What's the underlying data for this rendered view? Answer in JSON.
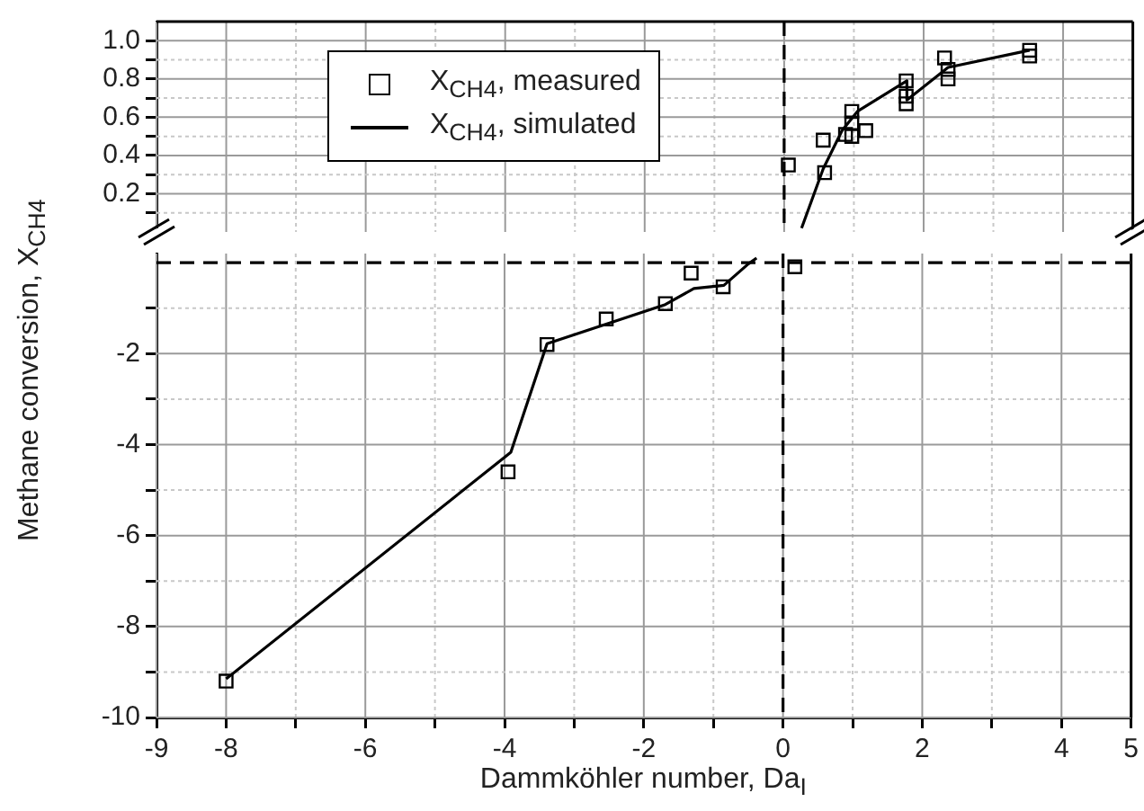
{
  "chart_data": [
    {
      "type": "scatter",
      "tick_labels": "y",
      "xlim": [
        -9,
        5
      ],
      "xticks": [
        -9,
        -8,
        {
          "value": -7,
          "label": null
        },
        -6,
        {
          "value": -5,
          "label": null
        },
        -4,
        {
          "value": -3,
          "label": null
        },
        -2,
        {
          "value": -1,
          "label": null
        },
        0,
        {
          "value": 1,
          "label": null
        },
        2,
        {
          "value": 3,
          "label": null
        },
        4,
        5
      ],
      "ylim": [
        0,
        1.1
      ],
      "yticks": [
        {
          "value": 0.1,
          "label": null
        },
        0.2,
        {
          "value": 0.3,
          "label": null
        },
        0.4,
        {
          "value": 0.5,
          "label": null
        },
        0.6,
        {
          "value": 0.7,
          "label": null
        },
        0.8,
        {
          "value": 0.9,
          "label": null
        },
        {
          "value": 1,
          "label": "1.0"
        }
      ],
      "grid": true,
      "legend": "top left",
      "ref_lines": [
        {
          "axis": "x",
          "value": 0,
          "color": "#000000",
          "line_style": "dashed"
        }
      ],
      "series": [
        {
          "name": "X$_{CH4}$, measured",
          "marker": "square",
          "color": "#000000",
          "x": [
            0.06,
            0.56,
            0.58,
            0.88,
            0.97,
            0.97,
            0.97,
            1.17,
            1.75,
            1.75,
            1.75,
            2.3,
            2.35,
            2.35,
            3.52,
            3.52
          ],
          "values": [
            0.35,
            0.48,
            0.31,
            0.51,
            0.5,
            0.57,
            0.63,
            0.53,
            0.79,
            0.71,
            0.67,
            0.91,
            0.85,
            0.8,
            0.95,
            0.92
          ]
        },
        {
          "name": "X$_{CH4}$, simulated",
          "type": "line",
          "marker": "none",
          "line_style": "solid",
          "color": "#000000",
          "x": [
            0.25,
            0.56,
            0.83,
            1.05,
            1.76,
            1.76,
            2.35,
            3.52
          ],
          "values": [
            0.02,
            0.33,
            0.53,
            0.63,
            0.79,
            0.69,
            0.86,
            0.95
          ]
        }
      ]
    },
    {
      "type": "scatter",
      "xlabel": "Dammköhler number, Da$_{I}$",
      "ylabel": "Methane conversion, X$_{CH4}$",
      "xlim": [
        -9,
        5
      ],
      "xticks": [
        -9,
        -8,
        {
          "value": -7,
          "label": null
        },
        -6,
        {
          "value": -5,
          "label": null
        },
        -4,
        {
          "value": -3,
          "label": null
        },
        -2,
        {
          "value": -1,
          "label": null
        },
        0,
        {
          "value": 1,
          "label": null
        },
        2,
        {
          "value": 3,
          "label": null
        },
        4,
        5
      ],
      "ylim": [
        -10,
        0.2
      ],
      "yticks": [
        -10,
        {
          "value": -9,
          "label": null
        },
        -8,
        {
          "value": -7,
          "label": null
        },
        -6,
        {
          "value": -5,
          "label": null
        },
        -4,
        {
          "value": -3,
          "label": null
        },
        -2,
        {
          "value": -1,
          "label": null
        }
      ],
      "grid": true,
      "ref_lines": [
        {
          "axis": "x",
          "value": 0,
          "color": "#000000",
          "line_style": "dashed"
        },
        {
          "axis": "y",
          "value": 0,
          "color": "#000000",
          "line_style": "dashed"
        }
      ],
      "series": [
        {
          "marker": "square",
          "color": "#000000",
          "x": [
            -8,
            -3.95,
            -3.39,
            -2.54,
            -1.69,
            -1.32,
            -0.86,
            0.17
          ],
          "values": [
            -9.2,
            -4.6,
            -1.8,
            -1.24,
            -0.9,
            -0.23,
            -0.53,
            -0.09
          ]
        },
        {
          "type": "line",
          "marker": "none",
          "line_style": "solid",
          "color": "#000000",
          "x": [
            -8,
            -3.91,
            -3.39,
            -1.69,
            -1.28,
            -0.85,
            -0.5,
            -0.38
          ],
          "values": [
            -9.15,
            -4.17,
            -1.78,
            -0.92,
            -0.57,
            -0.5,
            -0.03,
            0.1
          ]
        }
      ]
    }
  ]
}
